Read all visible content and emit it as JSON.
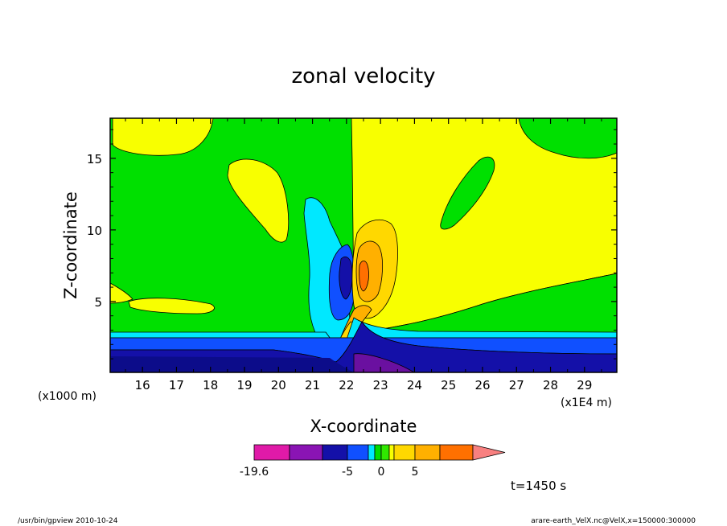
{
  "chart_data": {
    "type": "contour",
    "title": "zonal velocity",
    "xlabel": "X-coordinate",
    "ylabel": "Z-coordinate",
    "x_unit_note": "(x1E4 m)",
    "y_unit_note": "(x1000 m)",
    "xlim": [
      15.05,
      29.95
    ],
    "ylim": [
      0.05,
      17.8
    ],
    "x_ticks": [
      16,
      17,
      18,
      19,
      20,
      21,
      22,
      23,
      24,
      25,
      26,
      27,
      28,
      29
    ],
    "y_ticks": [
      5,
      10,
      15
    ],
    "colorbar": {
      "min_label": "-19.6",
      "labels": [
        {
          "value": -19.6,
          "text": "-19.6"
        },
        {
          "value": -5,
          "text": "-5"
        },
        {
          "value": 0,
          "text": "0"
        },
        {
          "value": 5,
          "text": "5"
        }
      ],
      "colors": [
        "#e01aa8",
        "#8a14b4",
        "#1410a8",
        "#1050ff",
        "#00e8ff",
        "#00dc00",
        "#30e800",
        "#f8ff00",
        "#ffd800",
        "#ffb000",
        "#ff7000",
        "#ff1a1a",
        "#f88080"
      ]
    },
    "time_label": "t=1450 s"
  },
  "footer": {
    "left": "/usr/bin/gpview  2010-10-24",
    "right": "arare-earth_VelX.nc@VelX,x=150000:300000"
  },
  "colors": {
    "background": "#ffffff",
    "green": "#00e000",
    "yellow": "#f8ff00",
    "cyan": "#00e8ff",
    "blue": "#1050ff",
    "darkblue": "#1410a8",
    "navy": "#0c0c8a",
    "orange": "#ffb000",
    "lightorange": "#ffd800",
    "darkorange": "#ff7000",
    "purple": "#6a10a0"
  }
}
